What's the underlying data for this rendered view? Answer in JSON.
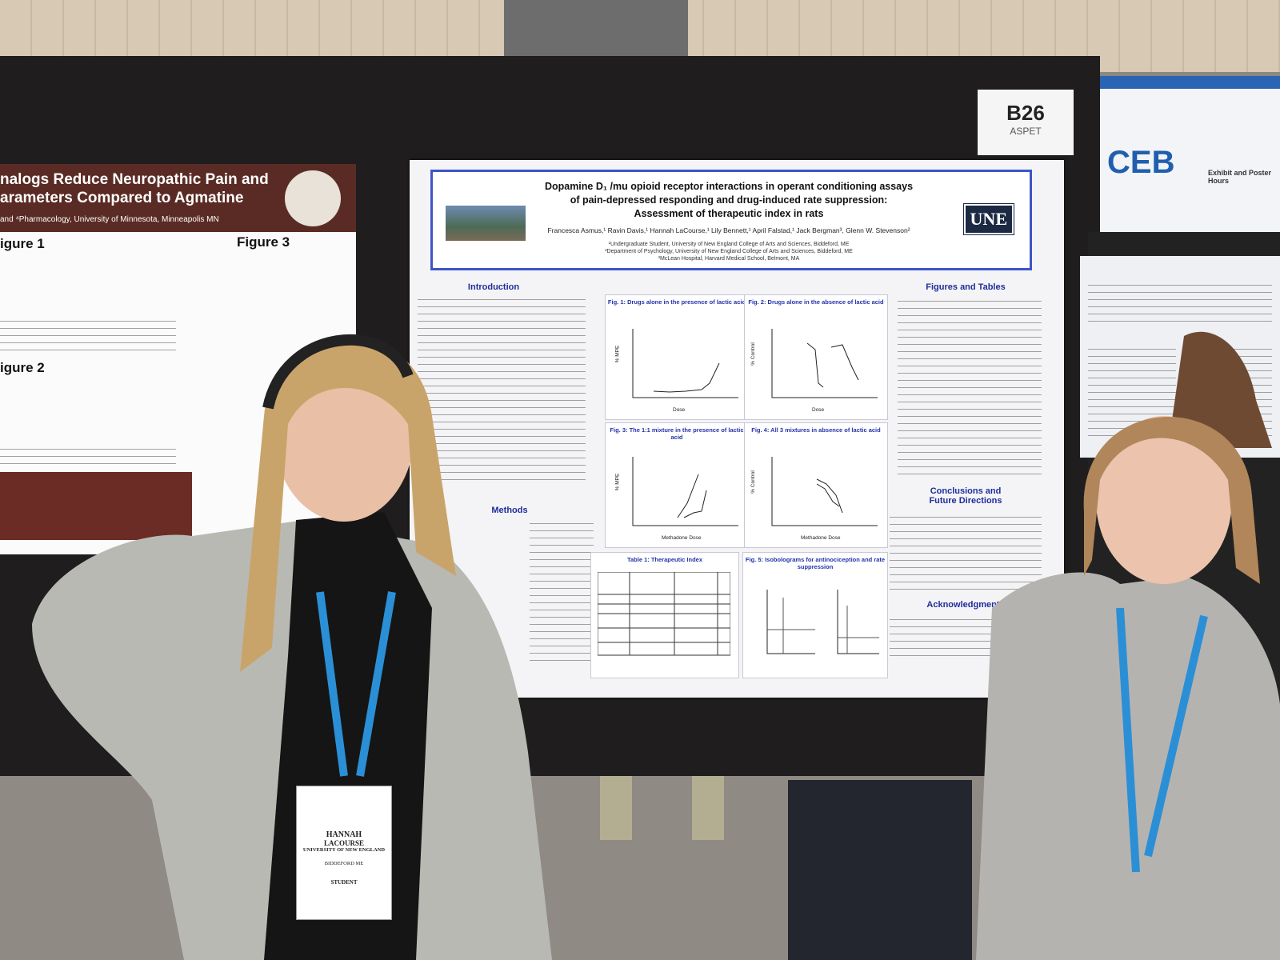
{
  "board": {
    "number": "B26",
    "society": "ASPET"
  },
  "poster": {
    "title_lines": [
      "Dopamine D₁ /mu opioid receptor interactions in operant conditioning assays",
      "of pain-depressed responding and drug-induced rate suppression:",
      "Assessment of therapeutic index in rats"
    ],
    "logo": "UNE",
    "authors": "Francesca Asmus,¹ Ravin Davis,¹ Hannah LaCourse,¹ Lily Bennett,¹ April Falstad,¹ Jack Bergman³, Glenn W. Stevenson²",
    "affiliations": [
      "¹Undergraduate Student, University of New England College of Arts and Sciences, Biddeford, ME",
      "²Department of Psychology, University of New England College of Arts and Sciences, Biddeford, ME",
      "³McLean Hospital, Harvard Medical School, Belmont, MA"
    ],
    "sections": {
      "introduction": "Introduction",
      "methods": "Methods",
      "figures_and_tables": "Figures and Tables",
      "conclusions": [
        "Conclusions and",
        "Future Directions"
      ],
      "acknowledgments": "Acknowledgments"
    },
    "figures": [
      "Fig. 1: Drugs alone in the presence of lactic acid",
      "Fig. 2: Drugs alone in the absence of lactic acid",
      "Fig. 3: The 1:1 mixture in the presence of lactic acid",
      "Fig. 4: All 3 mixtures in absence of lactic acid",
      "Table 1: Therapeutic Index",
      "Fig. 5: Isobolograms for antinociception and rate suppression"
    ],
    "axis_labels": [
      "% MPE",
      "% Control",
      "Dose",
      "Methadone Dose"
    ]
  },
  "left_poster": {
    "title_lines": [
      "nalogs Reduce Neuropathic Pain and",
      "arameters Compared to Agmatine"
    ],
    "affiliation": "and ⁴Pharmacology, University of Minnesota, Minneapolis MN",
    "figure_labels": [
      "igure 1",
      "Figure 3",
      "igure 2"
    ]
  },
  "right_sign": {
    "logo": "CEB",
    "text": "Exhibit and Poster Hours"
  },
  "badge": {
    "name_lines": [
      "HANNAH",
      "LACOURSE"
    ],
    "affiliation": "UNIVERSITY OF NEW ENGLAND",
    "location": "BIDDEFORD ME",
    "role": "STUDENT"
  }
}
